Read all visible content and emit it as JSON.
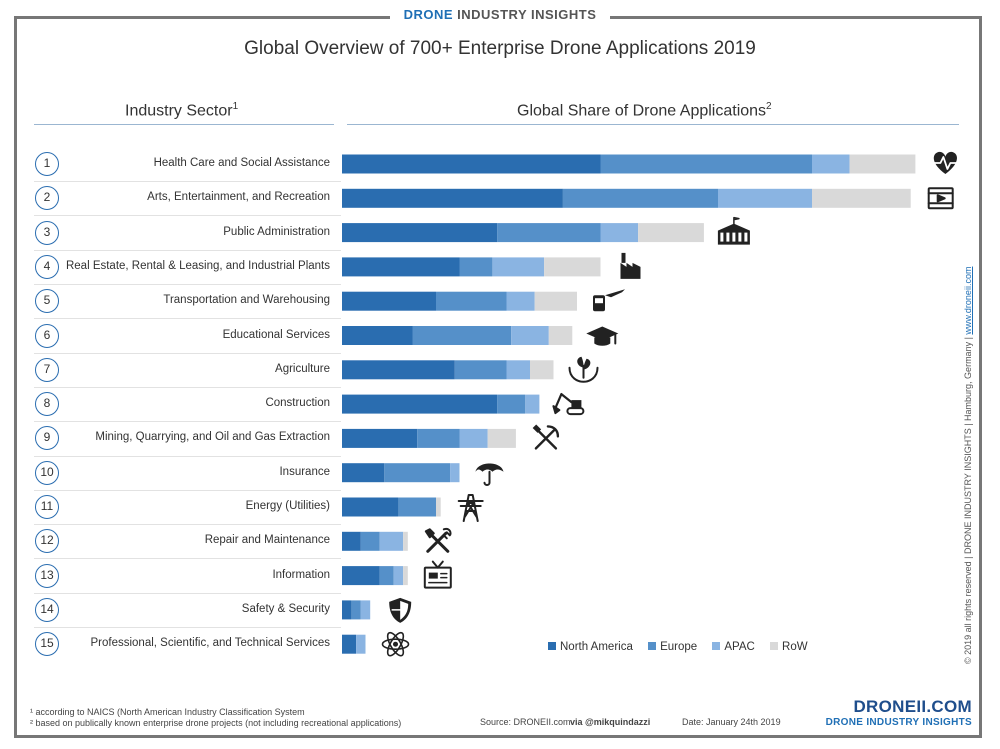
{
  "brand_top": {
    "part1": "DRONE",
    "part2": "INDUSTRY INSIGHTS"
  },
  "title": "Global Overview of 700+ Enterprise Drone Applications 2019",
  "headers": {
    "left": "Industry Sector",
    "left_sup": "1",
    "right": "Global Share of Drone Applications",
    "right_sup": "2"
  },
  "colors": {
    "na": "#2a6db0",
    "eu": "#5590c9",
    "apac": "#8ab4e2",
    "row": "#d9d9d9",
    "accent": "#1f6fb5"
  },
  "chart_data": {
    "type": "bar",
    "orientation": "horizontal",
    "stacked": true,
    "categories": [
      "Health Care and Social Assistance",
      "Arts, Entertainment, and Recreation",
      "Public Administration",
      "Real Estate, Rental & Leasing, and Industrial Plants",
      "Transportation and Warehousing",
      "Educational Services",
      "Agriculture",
      "Construction",
      "Mining, Quarrying, and Oil and Gas Extraction",
      "Insurance",
      "Energy (Utilities)",
      "Repair and Maintenance",
      "Information",
      "Safety & Security",
      "Professional, Scientific, and Technical Services"
    ],
    "ranks": [
      "1",
      "2",
      "3",
      "4",
      "5",
      "6",
      "7",
      "8",
      "9",
      "10",
      "11",
      "12",
      "13",
      "14",
      "15"
    ],
    "icons": [
      "heartbeat-icon",
      "video-icon",
      "government-building-icon",
      "factory-icon",
      "transport-icon",
      "graduation-cap-icon",
      "plant-hands-icon",
      "excavator-icon",
      "pickaxe-hammer-icon",
      "umbrella-icon",
      "power-tower-icon",
      "tools-icon",
      "tv-icon",
      "shield-icon",
      "atom-icon"
    ],
    "series": [
      {
        "name": "North America",
        "color": "#2a6db0",
        "values": [
          55,
          47,
          33,
          25,
          20,
          15,
          24,
          33,
          16,
          9,
          12,
          4,
          8,
          2,
          3
        ]
      },
      {
        "name": "Europe",
        "color": "#5590c9",
        "values": [
          45,
          33,
          22,
          7,
          15,
          21,
          11,
          6,
          9,
          14,
          8,
          4,
          3,
          2,
          0
        ]
      },
      {
        "name": "APAC",
        "color": "#8ab4e2",
        "values": [
          8,
          20,
          8,
          11,
          6,
          8,
          5,
          3,
          6,
          2,
          0,
          5,
          2,
          2,
          2
        ]
      },
      {
        "name": "RoW",
        "color": "#d9d9d9",
        "values": [
          14,
          21,
          14,
          12,
          9,
          5,
          5,
          0,
          6,
          0,
          1,
          1,
          1,
          0,
          0
        ]
      }
    ],
    "xlim": [
      0,
      125
    ],
    "grid": false,
    "legend_position": "bottom-right"
  },
  "legend": [
    "North America",
    "Europe",
    "APAC",
    "RoW"
  ],
  "footnotes": {
    "f1": "¹ according to NAICS (North American Industry Classification System",
    "f2": "² based on publically known enterprise drone projects (not including recreational applications)",
    "source": "Source: DRONEII.com",
    "via": "via @mikquindazzi",
    "date": "Date: January 24th 2019"
  },
  "logo": {
    "big": "DRONEII.COM",
    "small": "DRONE INDUSTRY INSIGHTS"
  },
  "side_text": {
    "main": "© 2019 all rights reserved | DRONE INDUSTRY INSIGHTS | Hamburg, Germany | ",
    "link": "www.droneii.com"
  }
}
